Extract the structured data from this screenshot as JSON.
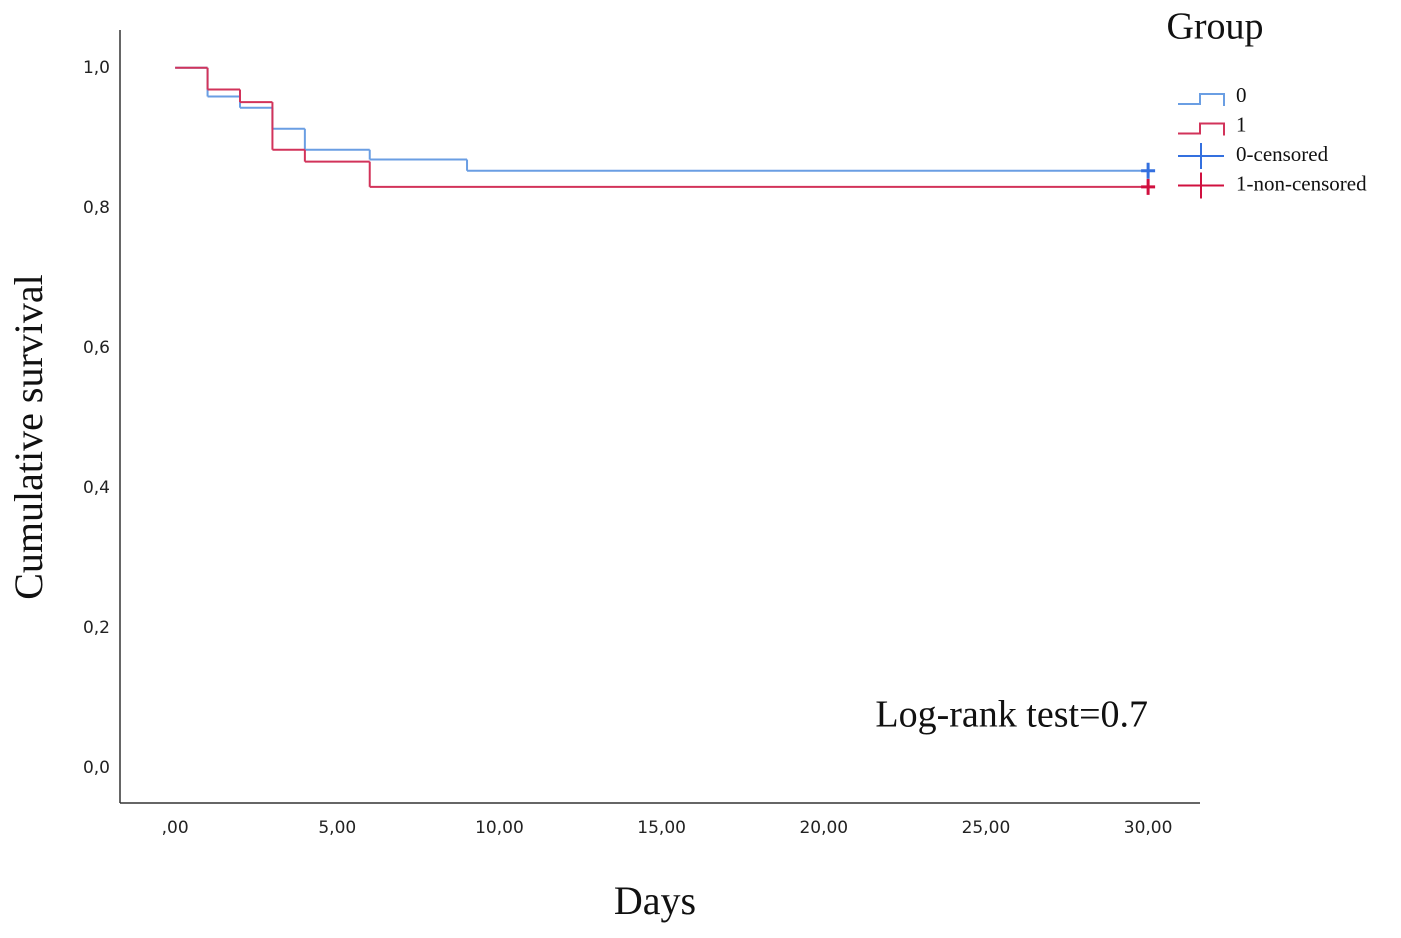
{
  "chart_data": {
    "type": "step",
    "legend_title": "Group",
    "xlabel": "Days",
    "ylabel": "Cumulative survival",
    "annotation": "Log-rank test=0.7",
    "xlim": [
      -1.7,
      31.6
    ],
    "ylim": [
      -0.05,
      1.054
    ],
    "xticks": [
      {
        "value": 0,
        "label": ",00"
      },
      {
        "value": 5,
        "label": "5,00"
      },
      {
        "value": 10,
        "label": "10,00"
      },
      {
        "value": 15,
        "label": "15,00"
      },
      {
        "value": 20,
        "label": "20,00"
      },
      {
        "value": 25,
        "label": "25,00"
      },
      {
        "value": 30,
        "label": "30,00"
      }
    ],
    "yticks": [
      {
        "value": 0,
        "label": "0,0"
      },
      {
        "value": 0.2,
        "label": "0,2"
      },
      {
        "value": 0.4,
        "label": "0,4"
      },
      {
        "value": 0.6,
        "label": "0,6"
      },
      {
        "value": 0.8,
        "label": "0,8"
      },
      {
        "value": 1,
        "label": "1,0"
      }
    ],
    "grid": false,
    "legend_position": "top-right",
    "series": [
      {
        "name": "0",
        "color": "#6a9ee3",
        "marker": "step",
        "x": [
          0,
          1,
          2,
          3,
          4,
          6,
          9,
          30
        ],
        "values": [
          1,
          0.959,
          0.943,
          0.913,
          0.883,
          0.869,
          0.853,
          0.853
        ]
      },
      {
        "name": "1",
        "color": "#d2335a",
        "marker": "step",
        "x": [
          0,
          1,
          2,
          3,
          4,
          6,
          30
        ],
        "values": [
          1,
          0.969,
          0.951,
          0.883,
          0.866,
          0.83,
          0.83
        ]
      },
      {
        "name": "0-censored",
        "color": "#3470df",
        "marker": "+",
        "x": [
          30
        ],
        "values": [
          0.853
        ]
      },
      {
        "name": "1-non-censored",
        "color": "#d0103f",
        "marker": "+",
        "x": [
          30
        ],
        "values": [
          0.83
        ]
      }
    ]
  }
}
